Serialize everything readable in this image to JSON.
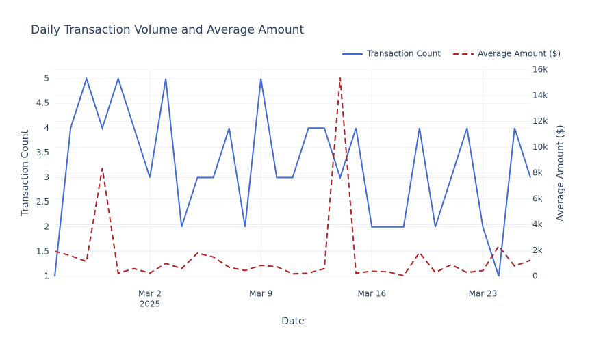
{
  "chart_data": {
    "type": "line",
    "title": "Daily Transaction Volume and Average Amount",
    "xlabel": "Date",
    "ylabel": "Transaction Count",
    "y2label": "Average Amount ($)",
    "x": [
      "2025-02-24",
      "2025-02-25",
      "2025-02-26",
      "2025-02-27",
      "2025-02-28",
      "2025-03-01",
      "2025-03-02",
      "2025-03-03",
      "2025-03-04",
      "2025-03-05",
      "2025-03-06",
      "2025-03-07",
      "2025-03-08",
      "2025-03-09",
      "2025-03-10",
      "2025-03-11",
      "2025-03-12",
      "2025-03-13",
      "2025-03-14",
      "2025-03-15",
      "2025-03-16",
      "2025-03-17",
      "2025-03-18",
      "2025-03-19",
      "2025-03-20",
      "2025-03-21",
      "2025-03-22",
      "2025-03-23",
      "2025-03-24",
      "2025-03-25",
      "2025-03-26"
    ],
    "series": [
      {
        "name": "Transaction Count",
        "color": "#4169d8",
        "dash": "solid",
        "axis": "y",
        "values": [
          1,
          4,
          5,
          4,
          5,
          4,
          3,
          5,
          2,
          3,
          3,
          4,
          2,
          5,
          3,
          3,
          4,
          4,
          3,
          4,
          2,
          2,
          2,
          4,
          2,
          3,
          4,
          2,
          1,
          4,
          3
        ]
      },
      {
        "name": "Average Amount ($)",
        "color": "#b22222",
        "dash": "dash",
        "axis": "y2",
        "values": [
          1950,
          1600,
          1150,
          8400,
          250,
          600,
          250,
          1000,
          600,
          1800,
          1500,
          700,
          450,
          850,
          750,
          200,
          250,
          600,
          15400,
          250,
          400,
          350,
          50,
          1850,
          300,
          900,
          300,
          450,
          2350,
          800,
          1250
        ]
      }
    ],
    "xlim": [
      "2025-02-24",
      "2025-03-26"
    ],
    "xticks": [
      {
        "value": "2025-03-02",
        "label": "Mar 2"
      },
      {
        "value": "2025-03-09",
        "label": "Mar 9"
      },
      {
        "value": "2025-03-16",
        "label": "Mar 16"
      },
      {
        "value": "2025-03-23",
        "label": "Mar 23"
      }
    ],
    "xtick_year": "2025",
    "ylim": [
      1,
      5.18
    ],
    "yticks": [
      1,
      1.5,
      2,
      2.5,
      3,
      3.5,
      4,
      4.5,
      5
    ],
    "y2lim": [
      0,
      16000
    ],
    "y2ticks": [
      0,
      {
        "value": 2000,
        "label": "2k"
      },
      {
        "value": 4000,
        "label": "4k"
      },
      {
        "value": 6000,
        "label": "6k"
      },
      {
        "value": 8000,
        "label": "8k"
      },
      {
        "value": 10000,
        "label": "10k"
      },
      {
        "value": 12000,
        "label": "12k"
      },
      {
        "value": 14000,
        "label": "14k"
      },
      {
        "value": 16000,
        "label": "16k"
      }
    ],
    "grid": true,
    "legend": "top-right"
  }
}
